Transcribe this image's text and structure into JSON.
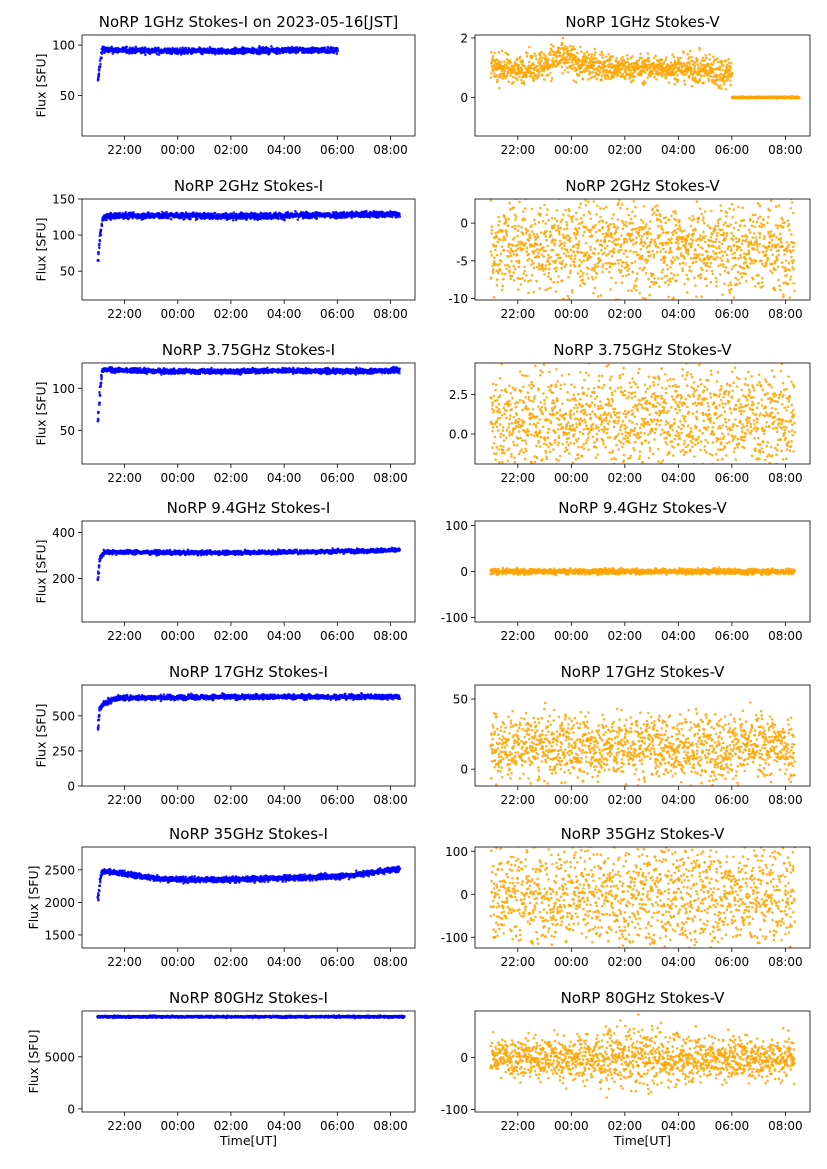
{
  "chart_data": [
    {
      "type": "scatter",
      "title": "NoRP 1GHz Stokes-I on 2023-05-16[JST]",
      "ylabel": "Flux [SFU]",
      "xlabel": "",
      "ylim": [
        10,
        110
      ],
      "yticks": [
        50,
        100
      ],
      "xticks": [
        "22:00",
        "00:00",
        "02:00",
        "04:00",
        "06:00",
        "08:00"
      ],
      "color": "#0000ff",
      "series": [
        {
          "x": [
            "21:00",
            "21:05",
            "21:10",
            "21:20",
            "22:00",
            "00:00",
            "02:00",
            "04:00",
            "06:00"
          ],
          "values": [
            65,
            80,
            97,
            95,
            95,
            94,
            94,
            95,
            95
          ],
          "spread": [
            2,
            3,
            2,
            2,
            2,
            2,
            2,
            2,
            2
          ]
        }
      ]
    },
    {
      "type": "scatter",
      "title": "NoRP 1GHz Stokes-V",
      "ylabel": "",
      "xlabel": "",
      "ylim": [
        -1.3,
        2.1
      ],
      "yticks": [
        0,
        2
      ],
      "xticks": [
        "22:00",
        "00:00",
        "02:00",
        "04:00",
        "06:00",
        "08:00"
      ],
      "color": "#ffa500",
      "series": [
        {
          "x": [
            "21:00",
            "22:00",
            "23:00",
            "23:30",
            "00:30",
            "02:00",
            "03:30",
            "05:00",
            "05:30",
            "06:00"
          ],
          "values": [
            1.0,
            0.95,
            1.1,
            1.35,
            1.1,
            0.95,
            1.0,
            0.95,
            0.85,
            0.9
          ],
          "spread": [
            0.35,
            0.3,
            0.35,
            0.4,
            0.35,
            0.3,
            0.3,
            0.35,
            0.4,
            0.3
          ]
        },
        {
          "x": [
            "06:00",
            "08:30"
          ],
          "values": [
            0,
            0
          ],
          "spread": [
            0.02,
            0.02
          ]
        }
      ]
    },
    {
      "type": "scatter",
      "title": "NoRP 2GHz Stokes-I",
      "ylabel": "Flux [SFU]",
      "xlabel": "",
      "ylim": [
        10,
        150
      ],
      "yticks": [
        50,
        100,
        150
      ],
      "xticks": [
        "22:00",
        "00:00",
        "02:00",
        "04:00",
        "06:00",
        "08:00"
      ],
      "color": "#0000ff",
      "series": [
        {
          "x": [
            "21:00",
            "21:05",
            "21:10",
            "21:20",
            "22:00",
            "00:00",
            "02:00",
            "04:00",
            "06:00",
            "08:00",
            "08:20"
          ],
          "values": [
            65,
            100,
            122,
            126,
            127,
            127,
            126,
            127,
            128,
            129,
            129
          ],
          "spread": [
            2,
            3,
            3,
            3,
            3,
            3,
            3,
            3,
            3,
            3,
            3
          ]
        }
      ]
    },
    {
      "type": "scatter",
      "title": "NoRP 2GHz Stokes-V",
      "ylabel": "",
      "xlabel": "",
      "ylim": [
        -10.2,
        3.2
      ],
      "yticks": [
        -10,
        -5,
        0
      ],
      "xticks": [
        "22:00",
        "00:00",
        "02:00",
        "04:00",
        "06:00",
        "08:00"
      ],
      "color": "#ffa500",
      "series": [
        {
          "x": [
            "21:00",
            "08:20"
          ],
          "values": [
            -3.2,
            -3.2
          ],
          "spread": [
            4.2,
            4.2
          ]
        }
      ]
    },
    {
      "type": "scatter",
      "title": "NoRP 3.75GHz Stokes-I",
      "ylabel": "Flux [SFU]",
      "xlabel": "",
      "ylim": [
        10,
        130
      ],
      "yticks": [
        50,
        100
      ],
      "xticks": [
        "22:00",
        "00:00",
        "02:00",
        "04:00",
        "06:00",
        "08:00"
      ],
      "color": "#0000ff",
      "series": [
        {
          "x": [
            "21:00",
            "21:05",
            "21:10",
            "21:20",
            "22:00",
            "00:00",
            "02:00",
            "04:00",
            "06:00",
            "08:00",
            "08:20"
          ],
          "values": [
            62,
            100,
            121,
            122,
            121,
            120,
            120,
            121,
            120,
            121,
            121
          ],
          "spread": [
            2,
            3,
            2,
            2,
            2,
            2,
            2,
            2,
            2,
            2,
            2
          ]
        }
      ]
    },
    {
      "type": "scatter",
      "title": "NoRP 3.75GHz Stokes-V",
      "ylabel": "",
      "xlabel": "",
      "ylim": [
        -1.9,
        4.5
      ],
      "yticks": [
        0.0,
        2.5
      ],
      "xticks": [
        "22:00",
        "00:00",
        "02:00",
        "04:00",
        "06:00",
        "08:00"
      ],
      "color": "#ffa500",
      "series": [
        {
          "x": [
            "21:00",
            "08:20"
          ],
          "values": [
            1.0,
            1.0
          ],
          "spread": [
            2.2,
            2.2
          ]
        }
      ]
    },
    {
      "type": "scatter",
      "title": "NoRP 9.4GHz Stokes-I",
      "ylabel": "Flux [SFU]",
      "xlabel": "",
      "ylim": [
        10,
        450
      ],
      "yticks": [
        200,
        400
      ],
      "xticks": [
        "22:00",
        "00:00",
        "02:00",
        "04:00",
        "06:00",
        "08:00"
      ],
      "color": "#0000ff",
      "series": [
        {
          "x": [
            "21:00",
            "21:05",
            "21:15",
            "22:00",
            "00:00",
            "02:00",
            "04:00",
            "06:00",
            "08:00",
            "08:20"
          ],
          "values": [
            200,
            290,
            315,
            315,
            312,
            312,
            315,
            318,
            322,
            325
          ],
          "spread": [
            5,
            8,
            6,
            6,
            6,
            6,
            6,
            6,
            6,
            6
          ]
        }
      ]
    },
    {
      "type": "scatter",
      "title": "NoRP 9.4GHz Stokes-V",
      "ylabel": "",
      "xlabel": "",
      "ylim": [
        -110,
        110
      ],
      "yticks": [
        -100,
        0,
        100
      ],
      "xticks": [
        "22:00",
        "00:00",
        "02:00",
        "04:00",
        "06:00",
        "08:00"
      ],
      "color": "#ffa500",
      "series": [
        {
          "x": [
            "21:00",
            "08:20"
          ],
          "values": [
            0,
            0
          ],
          "spread": [
            4,
            4
          ]
        }
      ]
    },
    {
      "type": "scatter",
      "title": "NoRP 17GHz Stokes-I",
      "ylabel": "Flux [SFU]",
      "xlabel": "",
      "ylim": [
        0,
        720
      ],
      "yticks": [
        0,
        250,
        500
      ],
      "xticks": [
        "22:00",
        "00:00",
        "02:00",
        "04:00",
        "06:00",
        "08:00"
      ],
      "color": "#0000ff",
      "series": [
        {
          "x": [
            "21:00",
            "21:05",
            "21:15",
            "21:40",
            "22:00",
            "00:00",
            "02:00",
            "04:00",
            "06:00",
            "08:00",
            "08:20"
          ],
          "values": [
            410,
            560,
            590,
            625,
            628,
            632,
            635,
            636,
            635,
            637,
            635
          ],
          "spread": [
            15,
            20,
            15,
            12,
            12,
            12,
            12,
            12,
            12,
            12,
            12
          ]
        }
      ]
    },
    {
      "type": "scatter",
      "title": "NoRP 17GHz Stokes-V",
      "ylabel": "",
      "xlabel": "",
      "ylim": [
        -12,
        60
      ],
      "yticks": [
        0,
        50
      ],
      "xticks": [
        "22:00",
        "00:00",
        "02:00",
        "04:00",
        "06:00",
        "08:00"
      ],
      "color": "#ffa500",
      "series": [
        {
          "x": [
            "21:00",
            "08:20"
          ],
          "values": [
            16,
            16
          ],
          "spread": [
            16,
            16
          ]
        }
      ]
    },
    {
      "type": "scatter",
      "title": "NoRP 35GHz Stokes-I",
      "ylabel": "Flux [SFU]",
      "xlabel": "",
      "ylim": [
        1300,
        2850
      ],
      "yticks": [
        1500,
        2000,
        2500
      ],
      "xticks": [
        "22:00",
        "00:00",
        "02:00",
        "04:00",
        "06:00",
        "08:00"
      ],
      "color": "#0000ff",
      "series": [
        {
          "x": [
            "21:00",
            "21:05",
            "21:10",
            "22:00",
            "23:00",
            "00:00",
            "02:00",
            "04:00",
            "06:00",
            "07:00",
            "08:00",
            "08:20"
          ],
          "values": [
            2050,
            2350,
            2480,
            2440,
            2380,
            2350,
            2350,
            2370,
            2400,
            2440,
            2500,
            2510
          ],
          "spread": [
            30,
            40,
            30,
            30,
            30,
            30,
            30,
            30,
            30,
            30,
            30,
            30
          ]
        }
      ]
    },
    {
      "type": "scatter",
      "title": "NoRP 35GHz Stokes-V",
      "ylabel": "",
      "xlabel": "",
      "ylim": [
        -125,
        110
      ],
      "yticks": [
        -100,
        0,
        100
      ],
      "xticks": [
        "22:00",
        "00:00",
        "02:00",
        "04:00",
        "06:00",
        "08:00"
      ],
      "color": "#ffa500",
      "series": [
        {
          "x": [
            "21:00",
            "08:20"
          ],
          "values": [
            0,
            0
          ],
          "spread": [
            85,
            85
          ]
        }
      ]
    },
    {
      "type": "scatter",
      "title": "NoRP 80GHz Stokes-I",
      "ylabel": "Flux [SFU]",
      "xlabel": "Time[UT]",
      "ylim": [
        -300,
        9400
      ],
      "yticks": [
        0,
        5000
      ],
      "xticks": [
        "22:00",
        "00:00",
        "02:00",
        "04:00",
        "06:00",
        "08:00"
      ],
      "color": "#0000ff",
      "series": [
        {
          "x": [
            "21:00",
            "08:30"
          ],
          "values": [
            8850,
            8850
          ],
          "spread": [
            60,
            60
          ]
        }
      ]
    },
    {
      "type": "scatter",
      "title": "NoRP 80GHz Stokes-V",
      "ylabel": "",
      "xlabel": "Time[UT]",
      "ylim": [
        -105,
        90
      ],
      "yticks": [
        -100,
        0
      ],
      "xticks": [
        "22:00",
        "00:00",
        "02:00",
        "04:00",
        "06:00",
        "08:00"
      ],
      "color": "#ffa500",
      "series": [
        {
          "x": [
            "21:00",
            "00:00",
            "02:30",
            "05:00",
            "08:20"
          ],
          "values": [
            0,
            0,
            0,
            0,
            0
          ],
          "spread": [
            25,
            30,
            40,
            30,
            28
          ]
        }
      ]
    }
  ]
}
